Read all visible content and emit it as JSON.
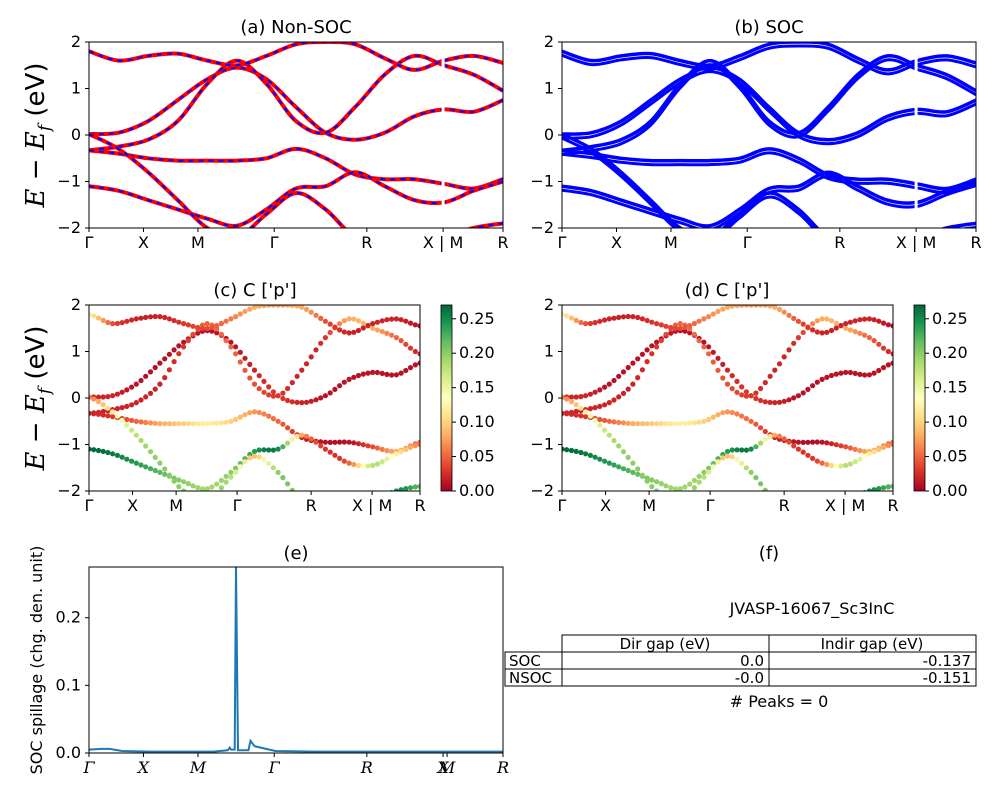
{
  "figure": {
    "energy_ylabel": "E − E_f (eV)",
    "spillage_ylabel": "SOC spillage (chg. den. unit)"
  },
  "colors": {
    "nonsoc_red": "#ff0000",
    "nonsoc_blue": "#0000ff",
    "soc_blue": "#0000ff",
    "spillage_line": "#1f77b4",
    "colormap": [
      "#a50026",
      "#d73027",
      "#f46d43",
      "#fdae61",
      "#fee08b",
      "#ffffbf",
      "#d9ef8b",
      "#a6d96a",
      "#66bd63",
      "#1a9850",
      "#006837"
    ]
  },
  "chart_data": [
    {
      "id": "a",
      "type": "line",
      "title": "(a) Non-SOC",
      "xticks": [
        "Γ",
        "X",
        "M",
        "Γ",
        "R",
        "X | M",
        "R"
      ],
      "ylim": [
        -2,
        2
      ],
      "yticks": [
        "−2",
        "−1",
        "0",
        "1",
        "2"
      ],
      "series": [
        {
          "values": [
            0.02,
            0.05,
            0.3,
            0.75,
            1.2,
            1.45,
            1.2,
            0.6,
            0.05,
            -0.1,
            0.05,
            0.4,
            0.55,
            0.5,
            0.75
          ]
        },
        {
          "values": [
            -0.33,
            -0.25,
            -0.1,
            0.3,
            1.1,
            1.6,
            1.1,
            0.3,
            0.05,
            0.6,
            1.3,
            1.7,
            1.5,
            1.3,
            0.95
          ]
        },
        {
          "values": [
            -0.33,
            -0.4,
            -0.5,
            -0.55,
            -0.55,
            -0.55,
            -0.5,
            -0.3,
            -0.5,
            -0.85,
            -0.95,
            -0.95,
            -1.05,
            -1.15,
            -0.95
          ]
        },
        {
          "values": [
            -1.1,
            -1.2,
            -1.4,
            -1.6,
            -1.8,
            -1.95,
            -1.6,
            -1.15,
            -1.1,
            -0.8,
            -1.1,
            -1.4,
            -1.45,
            -1.2,
            -1.0
          ]
        },
        {
          "values": [
            0.02,
            -0.3,
            -0.8,
            -1.4,
            -2.0,
            -2.2,
            -1.7,
            -1.25,
            -1.6,
            -2.2,
            -2.3,
            -2.3,
            -2.2,
            -2.0,
            -1.9
          ]
        },
        {
          "values": [
            1.8,
            1.6,
            1.7,
            1.75,
            1.6,
            1.5,
            1.7,
            1.95,
            2.0,
            1.95,
            1.65,
            1.4,
            1.6,
            1.7,
            1.55
          ]
        }
      ]
    },
    {
      "id": "b",
      "type": "line",
      "title": "(b) SOC",
      "xticks": [
        "Γ",
        "X",
        "M",
        "Γ",
        "R",
        "X | M",
        "R"
      ],
      "ylim": [
        -2,
        2
      ],
      "yticks": [
        "−2",
        "−1",
        "0",
        "1",
        "2"
      ],
      "series": [
        {
          "values": [
            0.02,
            0.05,
            0.3,
            0.75,
            1.2,
            1.45,
            1.2,
            0.6,
            0.05,
            -0.1,
            0.05,
            0.4,
            0.55,
            0.5,
            0.75
          ]
        },
        {
          "values": [
            -0.33,
            -0.25,
            -0.1,
            0.3,
            1.1,
            1.6,
            1.1,
            0.3,
            0.05,
            0.6,
            1.3,
            1.7,
            1.5,
            1.3,
            0.95
          ]
        },
        {
          "values": [
            -0.33,
            -0.4,
            -0.5,
            -0.55,
            -0.55,
            -0.55,
            -0.5,
            -0.3,
            -0.5,
            -0.85,
            -0.95,
            -0.95,
            -1.05,
            -1.15,
            -0.95
          ]
        },
        {
          "values": [
            -1.1,
            -1.2,
            -1.4,
            -1.6,
            -1.8,
            -1.95,
            -1.6,
            -1.15,
            -1.1,
            -0.8,
            -1.1,
            -1.4,
            -1.45,
            -1.2,
            -1.0
          ]
        },
        {
          "values": [
            0.02,
            -0.3,
            -0.8,
            -1.4,
            -2.0,
            -2.2,
            -1.7,
            -1.25,
            -1.6,
            -2.2,
            -2.3,
            -2.3,
            -2.2,
            -2.0,
            -1.9
          ]
        },
        {
          "values": [
            1.8,
            1.6,
            1.7,
            1.75,
            1.6,
            1.5,
            1.7,
            1.95,
            2.0,
            1.95,
            1.65,
            1.4,
            1.6,
            1.7,
            1.55
          ]
        }
      ]
    },
    {
      "id": "c",
      "type": "scatter",
      "title": "(c)  C ['p']",
      "xticks": [
        "Γ",
        "X",
        "M",
        "Γ",
        "R",
        "X | M",
        "R"
      ],
      "ylim": [
        -2,
        2
      ],
      "yticks": [
        "−2",
        "−1",
        "0",
        "1",
        "2"
      ],
      "colorbar": {
        "ticks": [
          "0.00",
          "0.05",
          "0.10",
          "0.15",
          "0.20",
          "0.25"
        ],
        "range": [
          0,
          0.27
        ]
      },
      "series": [
        {
          "values": [
            0.02,
            0.05,
            0.3,
            0.75,
            1.2,
            1.45,
            1.2,
            0.6,
            0.05,
            -0.1,
            0.05,
            0.4,
            0.55,
            0.5,
            0.75
          ],
          "weights": [
            0.02,
            0.02,
            0.01,
            0.01,
            0.01,
            0.01,
            0.01,
            0.02,
            0.03,
            0.02,
            0.01,
            0.01,
            0.01,
            0.01,
            0.01
          ]
        },
        {
          "values": [
            -0.33,
            -0.25,
            -0.1,
            0.3,
            1.1,
            1.6,
            1.1,
            0.3,
            0.05,
            0.6,
            1.3,
            1.7,
            1.5,
            1.3,
            0.95
          ],
          "weights": [
            0.02,
            0.02,
            0.02,
            0.02,
            0.03,
            0.05,
            0.05,
            0.04,
            0.03,
            0.02,
            0.03,
            0.08,
            0.08,
            0.05,
            0.02
          ]
        },
        {
          "values": [
            -0.33,
            -0.4,
            -0.5,
            -0.55,
            -0.55,
            -0.55,
            -0.5,
            -0.3,
            -0.5,
            -0.85,
            -0.95,
            -0.95,
            -1.05,
            -1.15,
            -0.95
          ],
          "weights": [
            0.02,
            0.03,
            0.05,
            0.08,
            0.1,
            0.12,
            0.1,
            0.07,
            0.05,
            0.02,
            0.01,
            0.01,
            0.04,
            0.08,
            0.05
          ]
        },
        {
          "values": [
            -1.1,
            -1.2,
            -1.4,
            -1.6,
            -1.8,
            -1.95,
            -1.6,
            -1.15,
            -1.1,
            -0.8,
            -1.1,
            -1.4,
            -1.45,
            -1.2,
            -1.0
          ],
          "weights": [
            0.27,
            0.26,
            0.24,
            0.22,
            0.2,
            0.19,
            0.2,
            0.24,
            0.25,
            0.08,
            0.03,
            0.05,
            0.18,
            0.12,
            0.06
          ]
        },
        {
          "values": [
            0.02,
            -0.3,
            -0.8,
            -1.4,
            -2.0,
            -2.2,
            -1.7,
            -1.25,
            -1.6,
            -2.2,
            -2.3,
            -2.3,
            -2.2,
            -2.0,
            -1.9
          ],
          "weights": [
            0.06,
            0.12,
            0.18,
            0.2,
            0.2,
            0.2,
            0.18,
            0.09,
            0.2,
            0.2,
            0.2,
            0.2,
            0.2,
            0.25,
            0.22
          ]
        },
        {
          "values": [
            1.8,
            1.6,
            1.7,
            1.75,
            1.6,
            1.5,
            1.7,
            1.95,
            2.0,
            1.95,
            1.65,
            1.4,
            1.6,
            1.7,
            1.55
          ],
          "weights": [
            0.12,
            0.04,
            0.02,
            0.02,
            0.03,
            0.04,
            0.06,
            0.08,
            0.07,
            0.08,
            0.04,
            0.02,
            0.02,
            0.02,
            0.01
          ]
        }
      ]
    },
    {
      "id": "d",
      "type": "scatter",
      "title": "(d) C ['p']",
      "xticks": [
        "Γ",
        "X",
        "M",
        "Γ",
        "R",
        "X | M",
        "R"
      ],
      "ylim": [
        -2,
        2
      ],
      "yticks": [
        "−2",
        "−1",
        "0",
        "1",
        "2"
      ],
      "colorbar": {
        "ticks": [
          "0.00",
          "0.05",
          "0.10",
          "0.15",
          "0.20",
          "0.25"
        ],
        "range": [
          0,
          0.27
        ]
      },
      "series": [
        {
          "values": [
            0.02,
            0.05,
            0.3,
            0.75,
            1.2,
            1.45,
            1.2,
            0.6,
            0.05,
            -0.1,
            0.05,
            0.4,
            0.55,
            0.5,
            0.75
          ],
          "weights": [
            0.02,
            0.02,
            0.01,
            0.01,
            0.01,
            0.01,
            0.01,
            0.02,
            0.03,
            0.02,
            0.01,
            0.01,
            0.01,
            0.01,
            0.01
          ]
        },
        {
          "values": [
            -0.33,
            -0.25,
            -0.1,
            0.3,
            1.1,
            1.6,
            1.1,
            0.3,
            0.05,
            0.6,
            1.3,
            1.7,
            1.5,
            1.3,
            0.95
          ],
          "weights": [
            0.02,
            0.02,
            0.02,
            0.02,
            0.03,
            0.05,
            0.05,
            0.04,
            0.03,
            0.02,
            0.03,
            0.08,
            0.08,
            0.05,
            0.02
          ]
        },
        {
          "values": [
            -0.33,
            -0.4,
            -0.5,
            -0.55,
            -0.55,
            -0.55,
            -0.5,
            -0.3,
            -0.5,
            -0.85,
            -0.95,
            -0.95,
            -1.05,
            -1.15,
            -0.95
          ],
          "weights": [
            0.02,
            0.03,
            0.05,
            0.08,
            0.1,
            0.12,
            0.1,
            0.07,
            0.05,
            0.02,
            0.01,
            0.01,
            0.04,
            0.08,
            0.05
          ]
        },
        {
          "values": [
            -1.1,
            -1.2,
            -1.4,
            -1.6,
            -1.8,
            -1.95,
            -1.6,
            -1.15,
            -1.1,
            -0.8,
            -1.1,
            -1.4,
            -1.45,
            -1.2,
            -1.0
          ],
          "weights": [
            0.27,
            0.26,
            0.24,
            0.22,
            0.2,
            0.19,
            0.2,
            0.24,
            0.25,
            0.08,
            0.03,
            0.05,
            0.18,
            0.12,
            0.06
          ]
        },
        {
          "values": [
            0.02,
            -0.3,
            -0.8,
            -1.4,
            -2.0,
            -2.2,
            -1.7,
            -1.25,
            -1.6,
            -2.2,
            -2.3,
            -2.3,
            -2.2,
            -2.0,
            -1.9
          ],
          "weights": [
            0.06,
            0.12,
            0.18,
            0.2,
            0.2,
            0.2,
            0.18,
            0.09,
            0.2,
            0.2,
            0.2,
            0.2,
            0.2,
            0.25,
            0.22
          ]
        },
        {
          "values": [
            1.8,
            1.6,
            1.7,
            1.75,
            1.6,
            1.5,
            1.7,
            1.95,
            2.0,
            1.95,
            1.65,
            1.4,
            1.6,
            1.7,
            1.55
          ],
          "weights": [
            0.12,
            0.04,
            0.02,
            0.02,
            0.03,
            0.04,
            0.06,
            0.08,
            0.07,
            0.08,
            0.04,
            0.02,
            0.02,
            0.02,
            0.01
          ]
        }
      ]
    },
    {
      "id": "e",
      "type": "line",
      "title": "(e)",
      "xticks": [
        "Γ",
        "X",
        "M",
        "Γ",
        "R",
        "X",
        "M",
        "R"
      ],
      "ylim": [
        0,
        0.275
      ],
      "yticks": [
        "0.0",
        "0.1",
        "0.2"
      ],
      "series": [
        {
          "x": [
            0,
            0.03,
            0.04,
            0.05,
            0.08,
            0.15,
            0.25,
            0.3,
            0.335,
            0.34,
            0.343,
            0.352,
            0.355,
            0.36,
            0.365,
            0.37,
            0.385,
            0.39,
            0.4,
            0.45,
            0.55,
            0.7,
            0.85,
            1.0
          ],
          "values": [
            0.005,
            0.006,
            0.006,
            0.006,
            0.003,
            0.002,
            0.002,
            0.002,
            0.004,
            0.008,
            0.005,
            0.005,
            0.275,
            0.004,
            0.004,
            0.004,
            0.004,
            0.018,
            0.01,
            0.003,
            0.002,
            0.002,
            0.002,
            0.002
          ]
        }
      ]
    },
    {
      "id": "f",
      "type": "table",
      "title": "(f)",
      "subtitle": "JVASP-16067_Sc3InC",
      "columns": [
        "Dir gap (eV)",
        "Indir gap (eV)"
      ],
      "rows": [
        {
          "label": "SOC",
          "values": [
            "0.0",
            "-0.137"
          ]
        },
        {
          "label": "NSOC",
          "values": [
            "-0.0",
            "-0.151"
          ]
        }
      ],
      "footer": "# Peaks = 0"
    }
  ]
}
